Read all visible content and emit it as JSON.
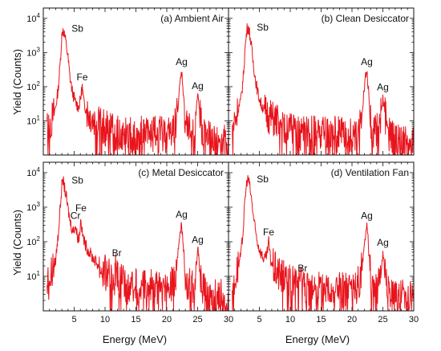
{
  "figure": {
    "ylabel": "Yield (Counts)",
    "xlabel": "Energy (MeV)",
    "line_color": "#e8141c"
  },
  "chart_data": [
    {
      "type": "line",
      "title": "(a) Ambient Air",
      "xlim": [
        0,
        30
      ],
      "ylim": [
        1,
        20000
      ],
      "yscale": "log",
      "xticks": [
        5,
        10,
        15,
        20,
        25,
        30
      ],
      "yticks": [
        10,
        100,
        1000,
        10000
      ],
      "grid": false,
      "series": [
        {
          "points": [
            [
              0.6,
              6
            ],
            [
              1.0,
              8
            ],
            [
              1.5,
              12
            ],
            [
              2.0,
              25
            ],
            [
              2.4,
              80
            ],
            [
              2.7,
              400
            ],
            [
              3.0,
              3000
            ],
            [
              3.2,
              5000
            ],
            [
              3.4,
              3500
            ],
            [
              3.7,
              1800
            ],
            [
              4.0,
              700
            ],
            [
              4.3,
              200
            ],
            [
              4.7,
              70
            ],
            [
              5.2,
              35
            ],
            [
              5.7,
              25
            ],
            [
              6.0,
              40
            ],
            [
              6.3,
              100
            ],
            [
              6.6,
              30
            ],
            [
              7.2,
              18
            ],
            [
              8.0,
              12
            ],
            [
              9.0,
              8
            ],
            [
              10.0,
              6
            ],
            [
              11.0,
              5
            ],
            [
              12.0,
              4
            ],
            [
              13.0,
              4
            ],
            [
              14.0,
              4
            ],
            [
              15.0,
              4
            ],
            [
              16.0,
              4
            ],
            [
              17.0,
              4
            ],
            [
              18.0,
              4
            ],
            [
              19.0,
              4
            ],
            [
              20.0,
              4
            ],
            [
              20.8,
              5
            ],
            [
              21.4,
              8
            ],
            [
              21.9,
              40
            ],
            [
              22.2,
              150
            ],
            [
              22.4,
              280
            ],
            [
              22.6,
              120
            ],
            [
              22.9,
              15
            ],
            [
              23.3,
              6
            ],
            [
              24.0,
              5
            ],
            [
              24.5,
              7
            ],
            [
              24.8,
              25
            ],
            [
              25.0,
              55
            ],
            [
              25.3,
              20
            ],
            [
              25.7,
              5
            ],
            [
              26.5,
              3
            ],
            [
              27.5,
              2.5
            ],
            [
              28.5,
              2.5
            ],
            [
              30.0,
              2
            ]
          ]
        }
      ],
      "annotations": [
        {
          "text": "Sb",
          "x": 3.2,
          "y": 5000
        },
        {
          "text": "Fe",
          "x": 6.3,
          "y": 100
        },
        {
          "text": "Ag",
          "x": 22.4,
          "y": 280
        },
        {
          "text": "Ag",
          "x": 25.0,
          "y": 55
        }
      ]
    },
    {
      "type": "line",
      "title": "(b) Clean Desiccator",
      "xlim": [
        0,
        30
      ],
      "ylim": [
        1,
        20000
      ],
      "yscale": "log",
      "xticks": [
        5,
        10,
        15,
        20,
        25,
        30
      ],
      "yticks": [
        10,
        100,
        1000,
        10000
      ],
      "grid": false,
      "series": [
        {
          "points": [
            [
              0.6,
              6
            ],
            [
              1.0,
              10
            ],
            [
              1.5,
              20
            ],
            [
              2.0,
              40
            ],
            [
              2.4,
              200
            ],
            [
              2.7,
              1500
            ],
            [
              3.0,
              5000
            ],
            [
              3.2,
              5500
            ],
            [
              3.4,
              4000
            ],
            [
              3.7,
              1500
            ],
            [
              4.0,
              500
            ],
            [
              4.4,
              150
            ],
            [
              4.8,
              60
            ],
            [
              5.3,
              30
            ],
            [
              6.0,
              18
            ],
            [
              7.0,
              12
            ],
            [
              8.0,
              10
            ],
            [
              9.0,
              7
            ],
            [
              10.0,
              6
            ],
            [
              11.0,
              5
            ],
            [
              12.0,
              4
            ],
            [
              13.0,
              4
            ],
            [
              14.0,
              4
            ],
            [
              15.0,
              4
            ],
            [
              16.0,
              4
            ],
            [
              17.0,
              4
            ],
            [
              18.0,
              4
            ],
            [
              19.0,
              4
            ],
            [
              20.0,
              4
            ],
            [
              20.8,
              5
            ],
            [
              21.4,
              10
            ],
            [
              21.9,
              60
            ],
            [
              22.2,
              200
            ],
            [
              22.4,
              280
            ],
            [
              22.6,
              120
            ],
            [
              22.9,
              15
            ],
            [
              23.3,
              6
            ],
            [
              24.0,
              5
            ],
            [
              24.5,
              7
            ],
            [
              24.8,
              25
            ],
            [
              25.0,
              50
            ],
            [
              25.3,
              20
            ],
            [
              25.7,
              5
            ],
            [
              26.5,
              3
            ],
            [
              27.5,
              2.5
            ],
            [
              28.5,
              2.5
            ],
            [
              30.0,
              2
            ]
          ]
        }
      ],
      "annotations": [
        {
          "text": "Sb",
          "x": 3.2,
          "y": 5500
        },
        {
          "text": "Ag",
          "x": 22.4,
          "y": 280
        },
        {
          "text": "Ag",
          "x": 25.0,
          "y": 50
        }
      ]
    },
    {
      "type": "line",
      "title": "(c) Metal Desiccator",
      "xlim": [
        0,
        30
      ],
      "ylim": [
        1,
        20000
      ],
      "yscale": "log",
      "xticks": [
        5,
        10,
        15,
        20,
        25,
        30
      ],
      "yticks": [
        10,
        100,
        1000,
        10000
      ],
      "grid": false,
      "series": [
        {
          "points": [
            [
              0.6,
              6
            ],
            [
              1.0,
              8
            ],
            [
              1.5,
              15
            ],
            [
              2.0,
              30
            ],
            [
              2.4,
              150
            ],
            [
              2.7,
              800
            ],
            [
              3.0,
              4000
            ],
            [
              3.2,
              6000
            ],
            [
              3.4,
              4000
            ],
            [
              3.7,
              2000
            ],
            [
              4.0,
              900
            ],
            [
              4.4,
              350
            ],
            [
              4.8,
              200
            ],
            [
              5.2,
              300
            ],
            [
              5.5,
              150
            ],
            [
              5.8,
              120
            ],
            [
              6.1,
              500
            ],
            [
              6.3,
              180
            ],
            [
              6.7,
              90
            ],
            [
              7.2,
              60
            ],
            [
              8.0,
              35
            ],
            [
              9.0,
              20
            ],
            [
              10.0,
              12
            ],
            [
              11.0,
              8
            ],
            [
              11.6,
              10
            ],
            [
              11.9,
              25
            ],
            [
              12.2,
              8
            ],
            [
              13.0,
              6
            ],
            [
              14.0,
              5
            ],
            [
              15.0,
              5
            ],
            [
              16.0,
              5
            ],
            [
              17.0,
              5
            ],
            [
              18.0,
              5
            ],
            [
              19.0,
              5
            ],
            [
              20.0,
              5
            ],
            [
              20.8,
              6
            ],
            [
              21.4,
              10
            ],
            [
              21.9,
              60
            ],
            [
              22.2,
              200
            ],
            [
              22.4,
              320
            ],
            [
              22.6,
              140
            ],
            [
              22.9,
              18
            ],
            [
              23.3,
              7
            ],
            [
              24.0,
              5
            ],
            [
              24.5,
              8
            ],
            [
              24.8,
              30
            ],
            [
              25.0,
              60
            ],
            [
              25.3,
              20
            ],
            [
              25.7,
              6
            ],
            [
              26.5,
              3
            ],
            [
              27.5,
              2.5
            ],
            [
              28.5,
              2.5
            ],
            [
              30.0,
              2
            ]
          ]
        }
      ],
      "annotations": [
        {
          "text": "Sb",
          "x": 3.2,
          "y": 6000
        },
        {
          "text": "Cr",
          "x": 5.2,
          "y": 300
        },
        {
          "text": "Fe",
          "x": 6.1,
          "y": 500
        },
        {
          "text": "Br",
          "x": 11.9,
          "y": 25
        },
        {
          "text": "Ag",
          "x": 22.4,
          "y": 320
        },
        {
          "text": "Ag",
          "x": 25.0,
          "y": 60
        }
      ]
    },
    {
      "type": "line",
      "title": "(d) Ventilation Fan",
      "xlim": [
        0,
        30
      ],
      "ylim": [
        1,
        20000
      ],
      "yscale": "log",
      "xticks": [
        5,
        10,
        15,
        20,
        25,
        30
      ],
      "yticks": [
        10,
        100,
        1000,
        10000
      ],
      "grid": false,
      "series": [
        {
          "points": [
            [
              0.6,
              6
            ],
            [
              1.0,
              9
            ],
            [
              1.5,
              18
            ],
            [
              2.0,
              40
            ],
            [
              2.4,
              250
            ],
            [
              2.7,
              2000
            ],
            [
              3.0,
              6000
            ],
            [
              3.2,
              6500
            ],
            [
              3.4,
              4500
            ],
            [
              3.7,
              1800
            ],
            [
              4.0,
              600
            ],
            [
              4.4,
              180
            ],
            [
              4.8,
              80
            ],
            [
              5.3,
              45
            ],
            [
              5.8,
              30
            ],
            [
              6.2,
              40
            ],
            [
              6.5,
              100
            ],
            [
              6.8,
              30
            ],
            [
              7.3,
              18
            ],
            [
              8.0,
              12
            ],
            [
              9.0,
              9
            ],
            [
              10.0,
              7
            ],
            [
              11.0,
              6
            ],
            [
              11.7,
              6
            ],
            [
              12.0,
              9
            ],
            [
              12.3,
              5
            ],
            [
              13.0,
              5
            ],
            [
              14.0,
              4
            ],
            [
              15.0,
              4
            ],
            [
              16.0,
              4
            ],
            [
              17.0,
              4
            ],
            [
              18.0,
              4
            ],
            [
              19.0,
              4
            ],
            [
              20.0,
              4
            ],
            [
              20.8,
              5
            ],
            [
              21.4,
              9
            ],
            [
              21.9,
              50
            ],
            [
              22.2,
              180
            ],
            [
              22.4,
              300
            ],
            [
              22.6,
              130
            ],
            [
              22.9,
              15
            ],
            [
              23.3,
              6
            ],
            [
              24.0,
              5
            ],
            [
              24.5,
              7
            ],
            [
              24.8,
              25
            ],
            [
              25.0,
              50
            ],
            [
              25.3,
              18
            ],
            [
              25.7,
              5
            ],
            [
              26.5,
              3
            ],
            [
              27.5,
              2.5
            ],
            [
              28.5,
              2.5
            ],
            [
              30.0,
              2
            ]
          ]
        }
      ],
      "annotations": [
        {
          "text": "Sb",
          "x": 3.2,
          "y": 6500
        },
        {
          "text": "Fe",
          "x": 6.5,
          "y": 100
        },
        {
          "text": "Br",
          "x": 12.0,
          "y": 9
        },
        {
          "text": "Ag",
          "x": 22.4,
          "y": 300
        },
        {
          "text": "Ag",
          "x": 25.0,
          "y": 50
        }
      ]
    }
  ]
}
